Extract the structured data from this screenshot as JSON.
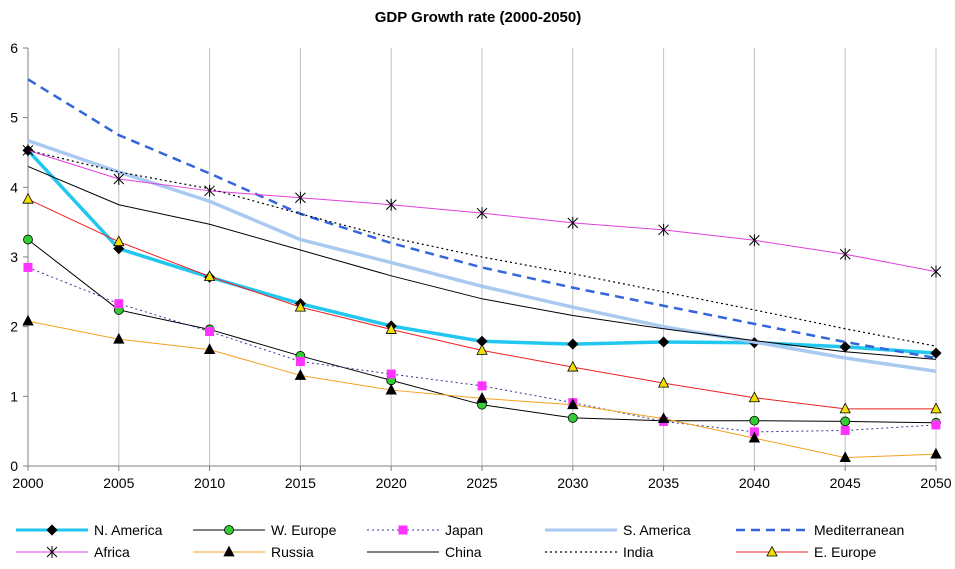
{
  "chart_data": {
    "type": "line",
    "title": "GDP Growth rate (2000-2050)",
    "xlabel": "",
    "ylabel": "",
    "x": [
      2000,
      2005,
      2010,
      2015,
      2020,
      2025,
      2030,
      2035,
      2040,
      2045,
      2050
    ],
    "xlim": [
      2000,
      2050
    ],
    "ylim": [
      0,
      6
    ],
    "y_ticks": [
      0,
      1,
      2,
      3,
      4,
      5,
      6
    ],
    "grid": "vertical",
    "legend_position": "bottom",
    "series": [
      {
        "name": "N. America",
        "color": "#22c7ef",
        "style": "solid",
        "width": 3.5,
        "marker": "diamond",
        "marker_fill": "#000000",
        "values": [
          4.53,
          3.12,
          2.71,
          2.33,
          2.01,
          1.79,
          1.75,
          1.78,
          1.77,
          1.71,
          1.62
        ]
      },
      {
        "name": "W. Europe",
        "color": "#000000",
        "style": "solid",
        "width": 1,
        "marker": "circle",
        "marker_fill": "#33cc33",
        "values": [
          3.25,
          2.24,
          1.96,
          1.58,
          1.23,
          0.88,
          0.69,
          0.65,
          0.65,
          0.64,
          0.62
        ]
      },
      {
        "name": "Japan",
        "color": "#333399",
        "style": "dotted",
        "width": 1,
        "marker": "square",
        "marker_fill": "#ff33ff",
        "values": [
          2.85,
          2.33,
          1.93,
          1.5,
          1.32,
          1.15,
          0.91,
          0.64,
          0.49,
          0.51,
          0.59
        ]
      },
      {
        "name": "S. America",
        "color": "#a9caf0",
        "style": "solid",
        "width": 3.5,
        "marker": "none",
        "marker_fill": "",
        "values": [
          4.67,
          4.22,
          3.8,
          3.25,
          2.92,
          2.58,
          2.28,
          2.0,
          1.78,
          1.55,
          1.36
        ]
      },
      {
        "name": "Mediterranean",
        "color": "#3366dd",
        "style": "dashed",
        "width": 2.5,
        "marker": "none",
        "marker_fill": "",
        "values": [
          5.55,
          4.75,
          4.2,
          3.62,
          3.2,
          2.85,
          2.56,
          2.3,
          2.04,
          1.78,
          1.55
        ]
      },
      {
        "name": "Africa",
        "color": "#e040e0",
        "style": "solid",
        "width": 1,
        "marker": "asterisk",
        "marker_fill": "#000000",
        "values": [
          4.53,
          4.12,
          3.95,
          3.85,
          3.75,
          3.63,
          3.49,
          3.39,
          3.24,
          3.04,
          2.79
        ]
      },
      {
        "name": "Russia",
        "color": "#f5a020",
        "style": "solid",
        "width": 1,
        "marker": "triangle",
        "marker_fill": "#000000",
        "values": [
          2.08,
          1.82,
          1.67,
          1.3,
          1.09,
          0.97,
          0.88,
          0.68,
          0.4,
          0.12,
          0.17
        ]
      },
      {
        "name": "China",
        "color": "#000000",
        "style": "solid",
        "width": 1,
        "marker": "none",
        "marker_fill": "",
        "values": [
          4.3,
          3.75,
          3.47,
          3.1,
          2.73,
          2.4,
          2.16,
          1.97,
          1.8,
          1.64,
          1.53
        ]
      },
      {
        "name": "India",
        "color": "#000000",
        "style": "dotted",
        "width": 1.2,
        "marker": "none",
        "marker_fill": "",
        "values": [
          4.53,
          4.22,
          3.98,
          3.62,
          3.28,
          3.0,
          2.76,
          2.5,
          2.24,
          1.97,
          1.72
        ]
      },
      {
        "name": "E. Europe",
        "color": "#ee2020",
        "style": "solid",
        "width": 1,
        "marker": "triangle",
        "marker_fill": "#f0e000",
        "values": [
          3.83,
          3.22,
          2.72,
          2.28,
          1.96,
          1.66,
          1.42,
          1.19,
          0.98,
          0.82,
          0.82
        ]
      }
    ]
  }
}
